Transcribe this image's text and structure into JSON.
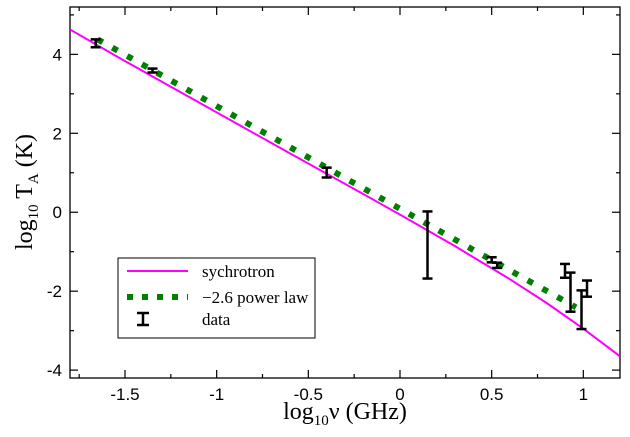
{
  "chart_data": {
    "type": "line",
    "xlabel": {
      "prefix": "log",
      "sub": "10",
      "main": "ν (GHz)"
    },
    "ylabel": {
      "prefix": "log",
      "sub": "10",
      "main": " T",
      "sub2": "A",
      "suffix": " (K)"
    },
    "xlim": [
      -1.8,
      1.2
    ],
    "ylim": [
      -4.2,
      5.2
    ],
    "xticks": [
      {
        "v": -1.5,
        "label": "-1.5"
      },
      {
        "v": -1,
        "label": "-1"
      },
      {
        "v": -0.5,
        "label": "-0.5"
      },
      {
        "v": 0,
        "label": "0"
      },
      {
        "v": 0.5,
        "label": "0.5"
      },
      {
        "v": 1,
        "label": "1"
      }
    ],
    "yticks": [
      {
        "v": -4,
        "label": "-4"
      },
      {
        "v": -2,
        "label": "-2"
      },
      {
        "v": 0,
        "label": "0"
      },
      {
        "v": 2,
        "label": "2"
      },
      {
        "v": 4,
        "label": "4"
      }
    ],
    "grid": false,
    "legend_position": "bottom-left",
    "series": [
      {
        "name": "sychrotron",
        "style": "line",
        "color": "#ff00ff",
        "x": [
          -1.8,
          -1.5,
          -1.2,
          -0.9,
          -0.6,
          -0.3,
          0.0,
          0.3,
          0.6,
          0.8,
          1.0,
          1.2
        ],
        "y": [
          4.63,
          3.83,
          3.05,
          2.27,
          1.49,
          0.72,
          -0.06,
          -0.86,
          -1.7,
          -2.3,
          -2.95,
          -3.65
        ]
      },
      {
        "name": "−2.6 power law",
        "style": "dotted",
        "color": "#008000",
        "x": [
          -1.65,
          0.96
        ],
        "y": [
          4.38,
          -2.41
        ]
      },
      {
        "name": "data",
        "style": "errorbar",
        "color": "#000000",
        "points": [
          {
            "x": -1.66,
            "lo": 4.18,
            "hi": 4.38
          },
          {
            "x": -1.35,
            "lo": 3.54,
            "hi": 3.64
          },
          {
            "x": -0.4,
            "lo": 0.88,
            "hi": 1.13
          },
          {
            "x": 0.15,
            "lo": -1.68,
            "hi": 0.02
          },
          {
            "x": 0.5,
            "lo": -1.27,
            "hi": -1.14
          },
          {
            "x": 0.53,
            "lo": -1.41,
            "hi": -1.28
          },
          {
            "x": 0.9,
            "lo": -1.66,
            "hi": -1.31
          },
          {
            "x": 0.93,
            "lo": -2.52,
            "hi": -1.53
          },
          {
            "x": 0.99,
            "lo": -2.96,
            "hi": -1.98
          },
          {
            "x": 1.02,
            "lo": -2.14,
            "hi": -1.73
          }
        ]
      }
    ]
  }
}
